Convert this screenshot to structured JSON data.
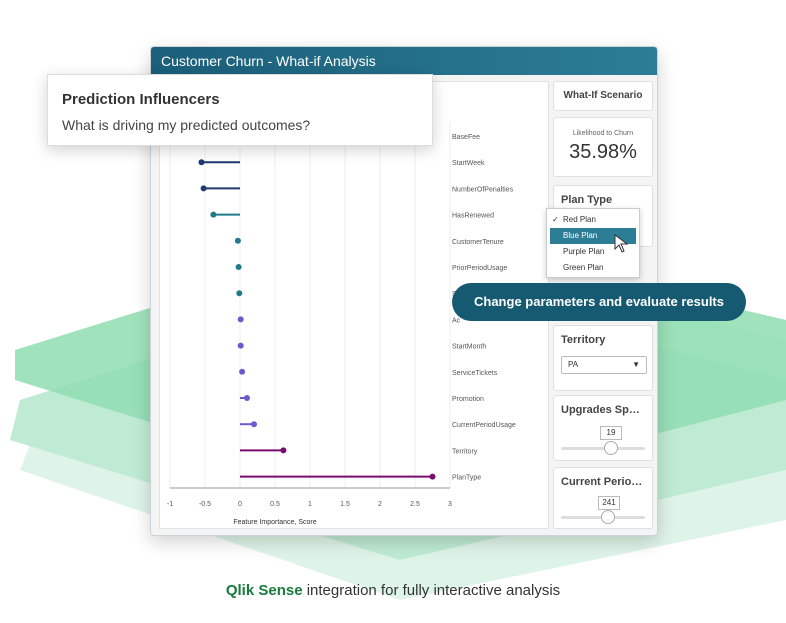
{
  "window": {
    "title": "Customer Churn - What-if Analysis"
  },
  "tooltip": {
    "heading": "Prediction Influencers",
    "question": "What is driving my predicted outcomes?"
  },
  "callout": {
    "text": "Change parameters and evaluate results"
  },
  "caption": {
    "brand": "Qlik Sense",
    "rest": " integration for fully interactive analysis"
  },
  "side": {
    "scenario_title": "What-If Scenario",
    "churn_label": "Likelihood to Churn",
    "churn_value": "35.98%",
    "plan_type_title": "Plan Type",
    "territory_title": "Territory",
    "territory_value": "PA",
    "upgrades_title": "Upgrades Spend",
    "upgrades_value": "19",
    "current_period_title": "Current Period ...",
    "current_period_value": "241"
  },
  "dropdown": {
    "options": [
      "Red Plan",
      "Blue Plan",
      "Purple Plan",
      "Green Plan"
    ],
    "selected": "Red Plan",
    "hovered": "Blue Plan"
  },
  "colors": {
    "navy": "#1f3a6e",
    "teal": "#1f7a8c",
    "purple": "#6a5acd",
    "magenta": "#7a0c6e",
    "green": "#3cc07e"
  },
  "chart_data": {
    "type": "scatter",
    "xlabel": "Feature Importance, Score",
    "xlim": [
      -1,
      3
    ],
    "xticks": [
      "-1",
      "-0.5",
      "0",
      "0.5",
      "1",
      "1.5",
      "2",
      "2.5",
      "3"
    ],
    "features": [
      {
        "name": "BaseFee",
        "value": null
      },
      {
        "name": "StartWeek",
        "value": -0.55
      },
      {
        "name": "NumberOfPenalties",
        "value": -0.52
      },
      {
        "name": "HasRenewed",
        "value": -0.38
      },
      {
        "name": "CustomerTenure",
        "value": -0.03
      },
      {
        "name": "PriorPeriodUsage",
        "value": -0.02
      },
      {
        "name": "S",
        "value": -0.01
      },
      {
        "name": "Ac",
        "value": 0.01
      },
      {
        "name": "StartMonth",
        "value": 0.01
      },
      {
        "name": "ServiceTickets",
        "value": 0.03
      },
      {
        "name": "Promotion",
        "value": 0.1
      },
      {
        "name": "CurrentPeriodUsage",
        "value": 0.2
      },
      {
        "name": "Territory",
        "value": 0.62
      },
      {
        "name": "PlanType",
        "value": 2.75
      }
    ]
  }
}
